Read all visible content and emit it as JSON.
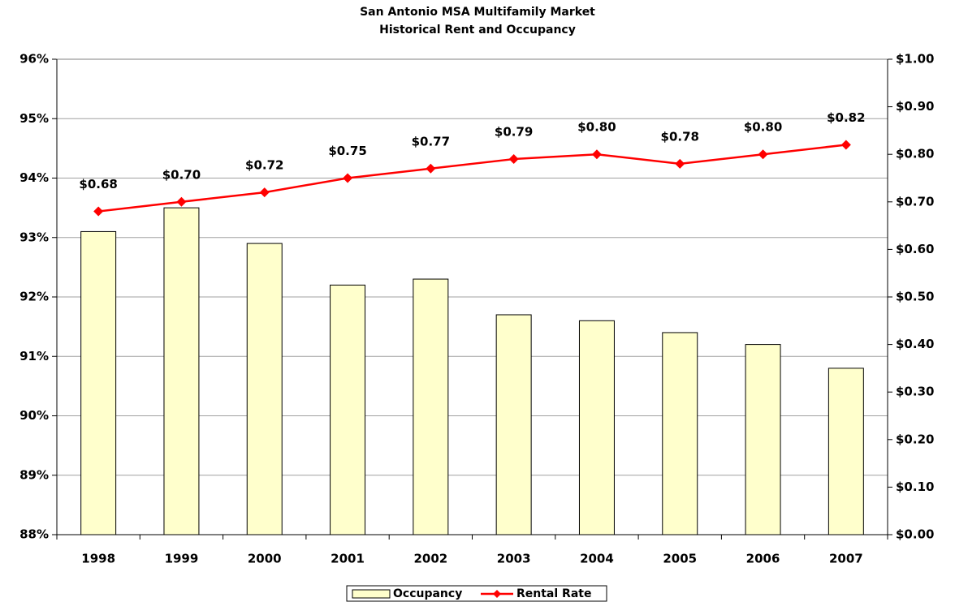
{
  "chart_data": {
    "type": "bar",
    "title": "San Antonio MSA Multifamily Market",
    "subtitle": "Historical Rent and Occupancy",
    "categories": [
      "1998",
      "1999",
      "2000",
      "2001",
      "2002",
      "2003",
      "2004",
      "2005",
      "2006",
      "2007"
    ],
    "series": [
      {
        "name": "Occupancy",
        "type": "bar",
        "color": "#ffffcc",
        "values": [
          93.1,
          93.5,
          92.9,
          92.2,
          92.3,
          91.7,
          91.6,
          91.4,
          91.2,
          90.8
        ]
      },
      {
        "name": "Rental Rate",
        "type": "line",
        "axis": "y2",
        "color": "#ff0000",
        "values": [
          0.68,
          0.7,
          0.72,
          0.75,
          0.77,
          0.79,
          0.8,
          0.78,
          0.8,
          0.82
        ],
        "value_labels": [
          "$0.68",
          "$0.70",
          "$0.72",
          "$0.75",
          "$0.77",
          "$0.79",
          "$0.80",
          "$0.78",
          "$0.80",
          "$0.82"
        ]
      }
    ],
    "ylim": [
      88,
      96
    ],
    "yticks": [
      {
        "value": 88,
        "label": "88%"
      },
      {
        "value": 89,
        "label": "89%"
      },
      {
        "value": 90,
        "label": "90%"
      },
      {
        "value": 91,
        "label": "91%"
      },
      {
        "value": 92,
        "label": "92%"
      },
      {
        "value": 93,
        "label": "93%"
      },
      {
        "value": 94,
        "label": "94%"
      },
      {
        "value": 95,
        "label": "95%"
      },
      {
        "value": 96,
        "label": "96%"
      }
    ],
    "y2lim": [
      0,
      1
    ],
    "y2ticks": [
      {
        "value": 0,
        "label": "$0.00"
      },
      {
        "value": 0.1,
        "label": "$0.10"
      },
      {
        "value": 0.2,
        "label": "$0.20"
      },
      {
        "value": 0.3,
        "label": "$0.30"
      },
      {
        "value": 0.4,
        "label": "$0.40"
      },
      {
        "value": 0.5,
        "label": "$0.50"
      },
      {
        "value": 0.6,
        "label": "$0.60"
      },
      {
        "value": 0.7,
        "label": "$0.70"
      },
      {
        "value": 0.8,
        "label": "$0.80"
      },
      {
        "value": 0.9,
        "label": "$0.90"
      },
      {
        "value": 1,
        "label": "$1.00"
      }
    ],
    "grid": true,
    "legend": "bottom"
  }
}
